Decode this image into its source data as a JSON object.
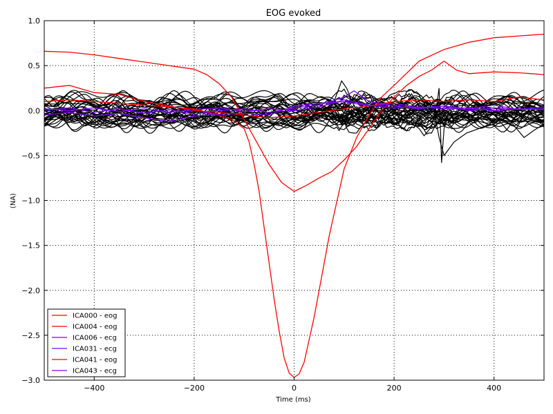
{
  "chart_data": {
    "type": "line",
    "title": "EOG evoked",
    "xlabel": "Time (ms)",
    "ylabel": "(NA)",
    "xlim": [
      -500,
      500
    ],
    "ylim": [
      -3.0,
      1.0
    ],
    "xticks": [
      -400,
      -200,
      0,
      200,
      400
    ],
    "xtick_labels": [
      "−400",
      "−200",
      "0",
      "200",
      "400"
    ],
    "yticks": [
      1.0,
      0.5,
      0.0,
      -0.5,
      -1.0,
      -1.5,
      -2.0,
      -2.5,
      -3.0
    ],
    "ytick_labels": [
      "1.0",
      "0.5",
      "0.0",
      "−0.5",
      "−1.0",
      "−1.5",
      "−2.0",
      "−2.5",
      "−3.0"
    ],
    "grid": true,
    "legend_position": "lower-left",
    "legend": [
      {
        "label": "ICA000 - eog",
        "color": "#ff0000"
      },
      {
        "label": "ICA004 - eog",
        "color": "#ff0000"
      },
      {
        "label": "ICA006 - ecg",
        "color": "#7f00ff"
      },
      {
        "label": "ICA031 - ecg",
        "color": "#7f00ff"
      },
      {
        "label": "ICA041 - eog",
        "color": "#ff0000"
      },
      {
        "label": "ICA043 - ecg",
        "color": "#7f00ff"
      }
    ],
    "series": [
      {
        "color": "#ff0000",
        "x": [
          -500,
          -450,
          -400,
          -350,
          -300,
          -250,
          -200,
          -175,
          -150,
          -125,
          -100,
          -90,
          -80,
          -70,
          -60,
          -50,
          -40,
          -30,
          -20,
          -10,
          0,
          10,
          20,
          30,
          40,
          50,
          60,
          70,
          80,
          90,
          100,
          125,
          150,
          175,
          200,
          250,
          300,
          350,
          400,
          450,
          500
        ],
        "y": [
          0.1,
          0.12,
          0.1,
          0.08,
          0.06,
          0.04,
          0.02,
          -0.02,
          -0.05,
          -0.1,
          -0.2,
          -0.35,
          -0.6,
          -0.9,
          -1.3,
          -1.7,
          -2.1,
          -2.45,
          -2.75,
          -2.92,
          -2.97,
          -2.93,
          -2.8,
          -2.55,
          -2.3,
          -2.0,
          -1.7,
          -1.4,
          -1.15,
          -0.9,
          -0.65,
          -0.3,
          -0.05,
          0.15,
          0.28,
          0.55,
          0.68,
          0.76,
          0.81,
          0.83,
          0.85
        ]
      },
      {
        "color": "#ff0000",
        "x": [
          -500,
          -450,
          -400,
          -350,
          -300,
          -250,
          -200,
          -175,
          -150,
          -125,
          -100,
          -75,
          -50,
          -25,
          0,
          25,
          50,
          75,
          100,
          125,
          150,
          175,
          200,
          225,
          250,
          275,
          300,
          325,
          350,
          400,
          450,
          500
        ],
        "y": [
          0.66,
          0.65,
          0.62,
          0.58,
          0.54,
          0.5,
          0.46,
          0.4,
          0.3,
          0.15,
          -0.1,
          -0.35,
          -0.6,
          -0.8,
          -0.9,
          -0.83,
          -0.75,
          -0.68,
          -0.55,
          -0.4,
          -0.2,
          0.0,
          0.15,
          0.28,
          0.38,
          0.45,
          0.55,
          0.45,
          0.41,
          0.43,
          0.42,
          0.4
        ]
      },
      {
        "color": "#ff0000",
        "x": [
          -500,
          -450,
          -400,
          -350,
          -300,
          -250,
          -200,
          -150,
          -100,
          -50,
          0,
          50,
          100,
          150,
          200,
          250,
          300,
          350,
          400,
          450,
          500
        ],
        "y": [
          0.25,
          0.28,
          0.2,
          0.18,
          0.1,
          0.05,
          0.0,
          -0.02,
          -0.05,
          -0.08,
          -0.06,
          -0.02,
          0.02,
          0.05,
          0.1,
          0.12,
          0.1,
          0.12,
          0.1,
          0.15,
          0.12
        ]
      },
      {
        "color": "#7f00ff",
        "x": [
          -500,
          -450,
          -400,
          -350,
          -300,
          -250,
          -200,
          -150,
          -100,
          -50,
          0,
          50,
          100,
          120,
          150,
          200,
          250,
          300,
          350,
          400,
          450,
          500
        ],
        "y": [
          0.0,
          0.03,
          -0.02,
          0.02,
          -0.03,
          0.01,
          -0.04,
          0.0,
          0.02,
          -0.02,
          0.03,
          0.06,
          0.15,
          0.22,
          0.1,
          0.05,
          0.02,
          0.05,
          0.0,
          0.03,
          0.01,
          0.02
        ]
      },
      {
        "color": "#7f00ff",
        "x": [
          -500,
          -450,
          -400,
          -350,
          -300,
          -250,
          -200,
          -150,
          -100,
          -50,
          0,
          50,
          100,
          150,
          200,
          250,
          300,
          350,
          400,
          450,
          500
        ],
        "y": [
          -0.05,
          -0.02,
          -0.06,
          -0.03,
          -0.08,
          -0.12,
          -0.06,
          -0.04,
          -0.03,
          -0.05,
          0.05,
          0.08,
          0.1,
          0.05,
          0.08,
          0.03,
          0.05,
          0.02,
          0.06,
          0.01,
          0.04
        ]
      },
      {
        "color": "#7f00ff",
        "x": [
          -500,
          -450,
          -400,
          -350,
          -300,
          -250,
          -200,
          -150,
          -100,
          -50,
          0,
          50,
          100,
          150,
          200,
          250,
          300,
          350,
          400,
          450,
          500
        ],
        "y": [
          0.02,
          0.0,
          0.03,
          -0.01,
          0.02,
          -0.02,
          0.01,
          0.03,
          -0.01,
          0.02,
          0.0,
          0.04,
          0.12,
          0.06,
          0.03,
          0.04,
          0.02,
          0.03,
          0.0,
          0.02,
          0.01
        ]
      }
    ]
  }
}
